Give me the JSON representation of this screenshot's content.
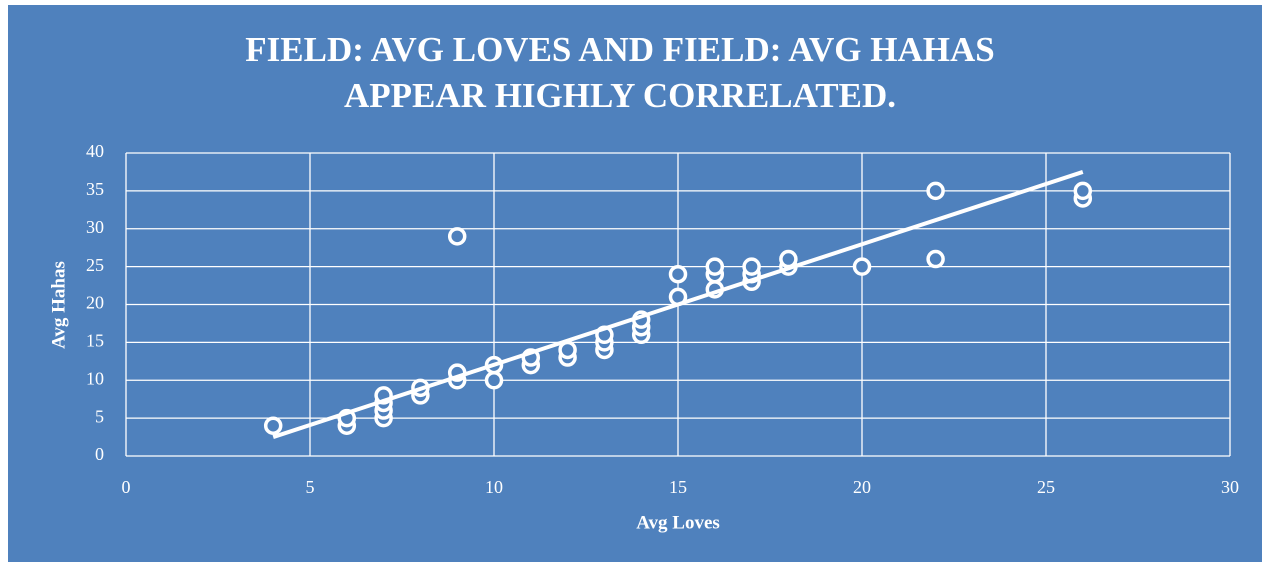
{
  "chart_data": {
    "type": "scatter",
    "title": [
      "FIELD: AVG LOVES AND FIELD: AVG HAHAS",
      "APPEAR HIGHLY CORRELATED."
    ],
    "x_label": "Avg Loves",
    "y_label": "Avg Hahas",
    "x": [
      4,
      6,
      6,
      7,
      7,
      7,
      7,
      8,
      8,
      9,
      9,
      9,
      10,
      10,
      11,
      11,
      12,
      12,
      13,
      13,
      13,
      14,
      14,
      14,
      15,
      15,
      16,
      16,
      16,
      17,
      17,
      17,
      18,
      18,
      20,
      22,
      22,
      26,
      26
    ],
    "values": [
      4,
      4,
      5,
      5,
      6,
      7,
      8,
      8,
      9,
      29,
      10,
      11,
      10,
      12,
      12,
      13,
      13,
      14,
      14,
      15,
      16,
      16,
      17,
      18,
      21,
      24,
      22,
      24,
      25,
      23,
      24,
      25,
      25,
      26,
      25,
      35,
      26,
      34,
      35
    ],
    "trendline": {
      "x": [
        4,
        26
      ],
      "y": [
        2.5,
        37.5
      ]
    },
    "color": "#ffffff",
    "background": "#4f81bd",
    "xlim": [
      0,
      30
    ],
    "xticks": [
      0,
      5,
      10,
      15,
      20,
      25,
      30
    ],
    "ylim": [
      0,
      40
    ],
    "yticks": [
      0,
      5,
      10,
      15,
      20,
      25,
      30,
      35,
      40
    ],
    "grid": true
  }
}
